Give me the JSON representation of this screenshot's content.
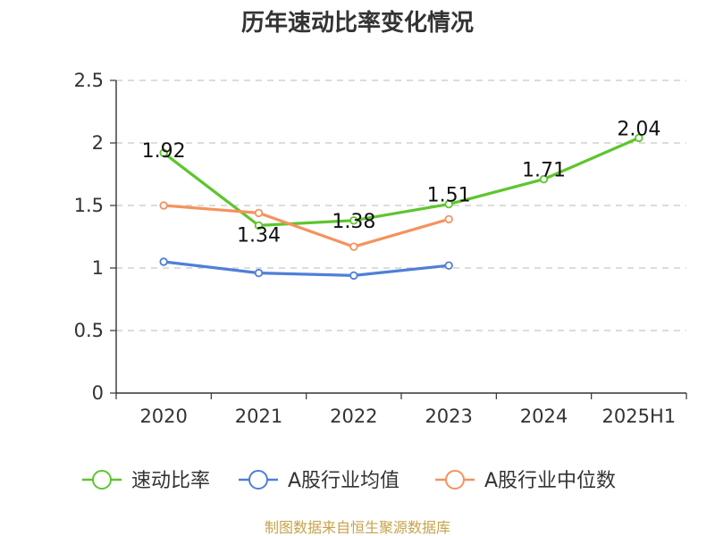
{
  "chart_data": {
    "type": "line",
    "title": "历年速动比率变化情况",
    "categories": [
      "2020",
      "2021",
      "2022",
      "2023",
      "2024",
      "2025H1"
    ],
    "ylim": [
      0,
      2.5
    ],
    "yticks": [
      "0",
      "0.5",
      "1",
      "1.5",
      "2",
      "2.5"
    ],
    "yticks_values": [
      0,
      0.5,
      1,
      1.5,
      2,
      2.5
    ],
    "grid": true,
    "legend_position": "bottom",
    "series": [
      {
        "name": "速动比率",
        "color": "#5ec52e",
        "values": [
          1.92,
          1.34,
          1.38,
          1.51,
          1.71,
          2.04
        ],
        "labels": [
          "1.92",
          "1.34",
          "1.38",
          "1.51",
          "1.71",
          "2.04"
        ]
      },
      {
        "name": "A股行业均值",
        "color": "#4f7fd8",
        "values": [
          1.05,
          0.96,
          0.94,
          1.02,
          null,
          null
        ]
      },
      {
        "name": "A股行业中位数",
        "color": "#f5925e",
        "values": [
          1.5,
          1.44,
          1.17,
          1.39,
          null,
          null
        ]
      }
    ]
  },
  "footer": {
    "source": "制图数据来自恒生聚源数据库"
  }
}
